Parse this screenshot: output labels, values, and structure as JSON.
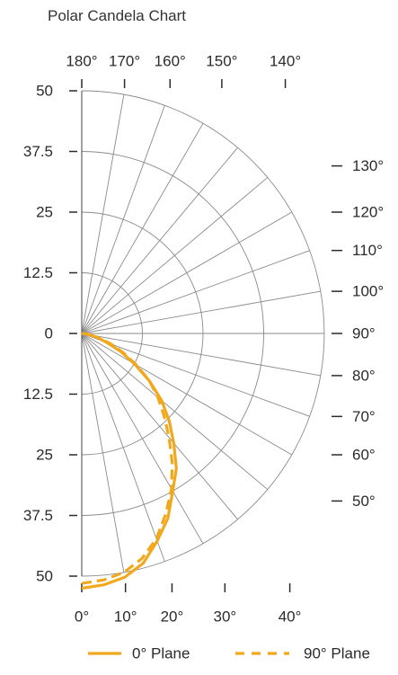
{
  "chart_data": {
    "type": "polar",
    "title": "Polar Candela Chart",
    "radial_ticks": [
      "50",
      "37.5",
      "25",
      "12.5",
      "0",
      "12.5",
      "25",
      "37.5",
      "50"
    ],
    "radial_max": 50,
    "angle_ticks_top": [
      "180°",
      "170°",
      "160°",
      "150°",
      "140°"
    ],
    "angle_ticks_right": [
      "130°",
      "120°",
      "110°",
      "100°",
      "90°",
      "80°",
      "70°",
      "60°",
      "50°"
    ],
    "angle_ticks_bottom": [
      "0°",
      "10°",
      "20°",
      "30°",
      "40°"
    ],
    "grid": true,
    "series": [
      {
        "name": "0° Plane",
        "style": "solid",
        "color": "#F2A81D",
        "angles": [
          0,
          5,
          10,
          15,
          20,
          25,
          30,
          35,
          40,
          45,
          50,
          55,
          60,
          65,
          70,
          75,
          80,
          85,
          90
        ],
        "values": [
          52.5,
          52,
          51,
          49,
          45.5,
          42,
          37.5,
          34,
          29.5,
          25.5,
          21.5,
          17,
          12.5,
          9,
          5.5,
          3.5,
          1.8,
          0.5,
          0
        ]
      },
      {
        "name": "90° Plane",
        "style": "dashed",
        "color": "#F2A81D",
        "angles": [
          0,
          5,
          10,
          15,
          20,
          25,
          30,
          35,
          40,
          45,
          50,
          55,
          60,
          65,
          70,
          75,
          80,
          85,
          90
        ],
        "values": [
          51.5,
          51,
          50,
          48,
          45,
          41,
          37,
          32.5,
          28,
          24,
          20.5,
          17,
          13,
          9.5,
          6.5,
          4,
          2,
          0.5,
          0
        ]
      }
    ]
  }
}
